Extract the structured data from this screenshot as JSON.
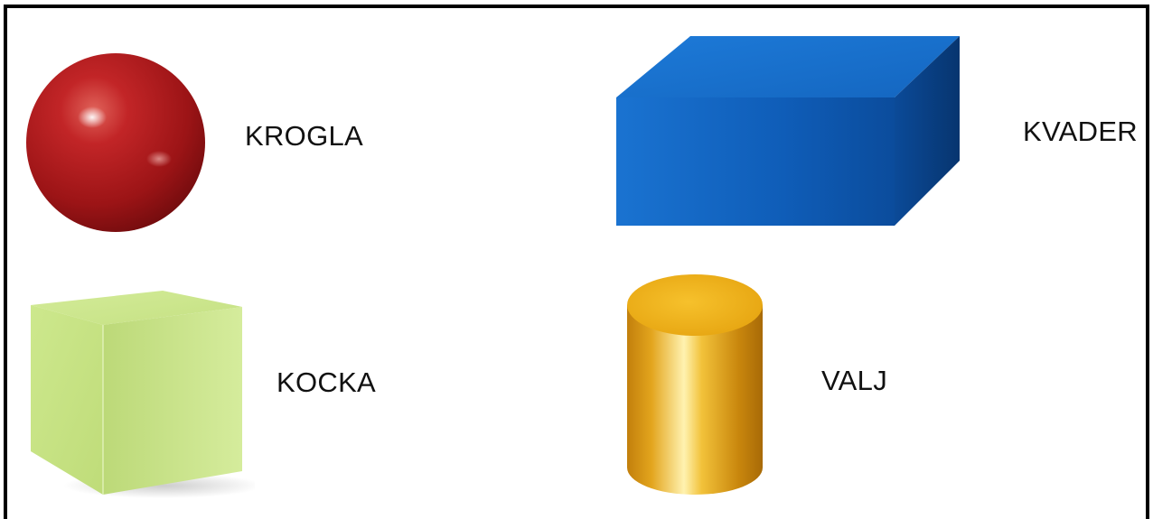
{
  "shapes": {
    "sphere": {
      "label": "KROGLA",
      "color": "#b4171a",
      "icon": "sphere-icon"
    },
    "cuboid": {
      "label": "KVADER",
      "color": "#0e5bb5",
      "icon": "cuboid-icon"
    },
    "cube": {
      "label": "KOCKA",
      "color": "#c3e27a",
      "icon": "cube-icon"
    },
    "cylinder": {
      "label": "VALJ",
      "color": "#e4a614",
      "icon": "cylinder-icon"
    }
  }
}
